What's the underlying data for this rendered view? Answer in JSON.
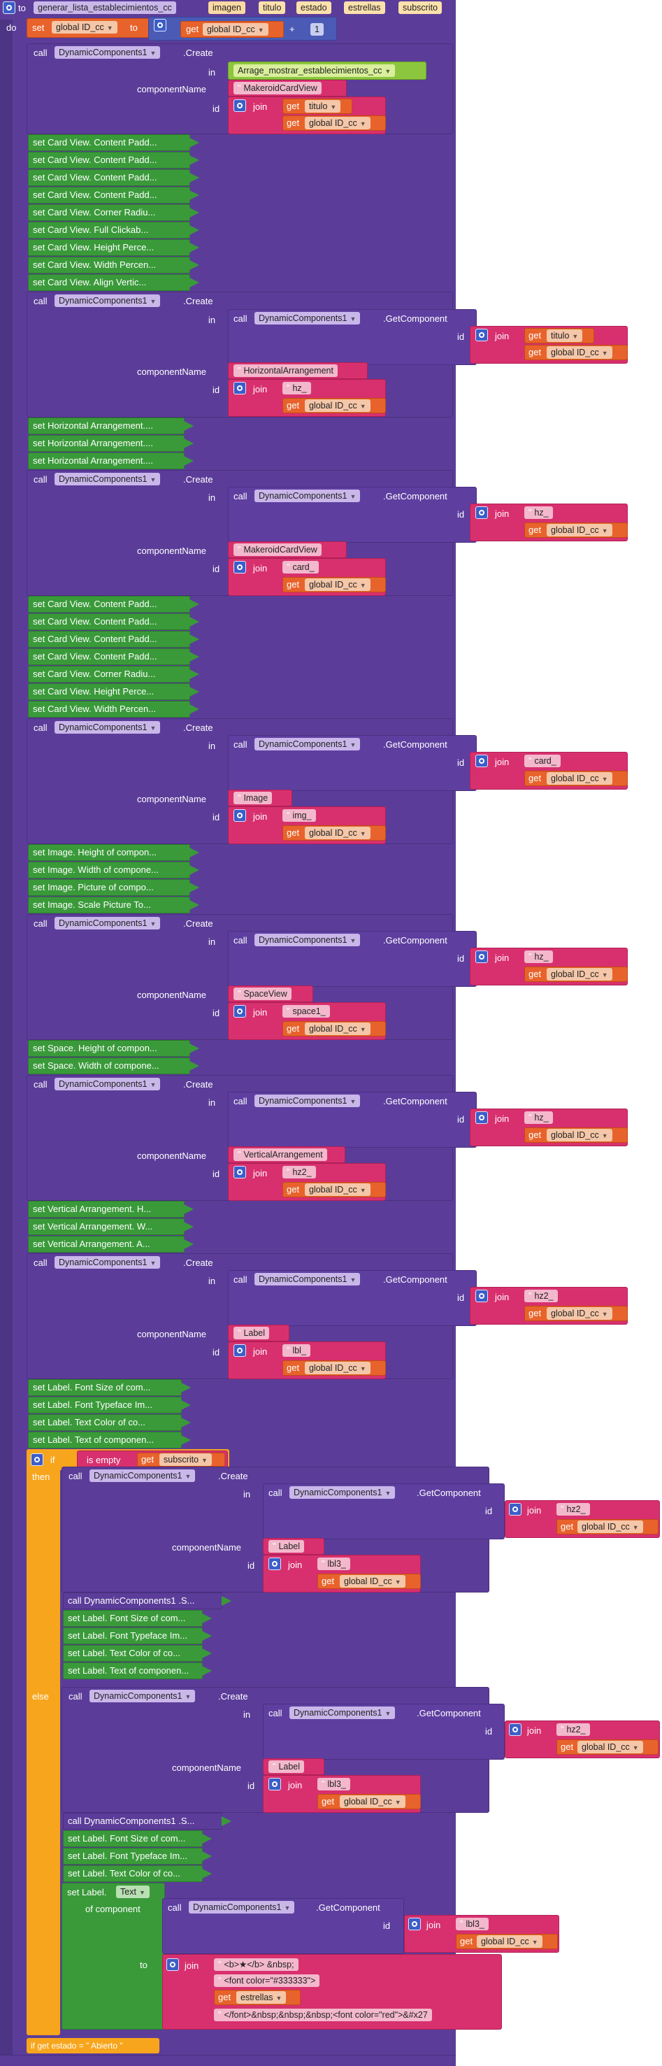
{
  "proc": {
    "to": "to",
    "name": "generar_lista_establecimientos_cc",
    "params": [
      "imagen",
      "titulo",
      "estado",
      "estrellas",
      "subscrito"
    ],
    "do": "do"
  },
  "kw": {
    "set": "set",
    "to": "to",
    "get": "get",
    "call": "call",
    "create": ".Create",
    "getcomp": ".GetComponent",
    "in": "in",
    "componentName": "componentName",
    "id": "id",
    "join": "join",
    "plus": "+",
    "if": "if",
    "then": "then",
    "else": "else",
    "is_empty": "is empty",
    "of_component": "of component",
    "dc": "DynamicComponents1",
    "dc_call_s": "call  DynamicComponents1 .S...",
    "set_label_text": "set Label.",
    "text_prop": "Text"
  },
  "vars": {
    "global_id": "global ID_cc",
    "titulo": "titulo",
    "estrellas": "estrellas",
    "subscrito": "subscrito",
    "one": "1"
  },
  "strings": {
    "arrage": "Arrage_mostrar_establecimientos_cc",
    "makeroid": "MakeroidCardView",
    "horizontal": "HorizontalArrangement",
    "hz": "hz_",
    "card": "card_",
    "image": "Image",
    "img": "img_",
    "space": "SpaceView",
    "space1": "space1_",
    "vertical": "VerticalArrangement",
    "hz2": "hz2_",
    "label": "Label",
    "lbl": "lbl_",
    "lbl3": "lbl3_",
    "s_b": "<b>★</b> &nbsp;",
    "s_font": "<font color=\"#333333\">",
    "s_end": "</font>&nbsp;&nbsp;&nbsp;<font color=\"red\">&#x27",
    "footer_if": "if  get estado =  \" Abierto \""
  },
  "sets": {
    "card1": [
      "set Card View. Content Padd...",
      "set Card View. Content Padd...",
      "set Card View. Content Padd...",
      "set Card View. Content Padd...",
      "set Card View. Corner Radiu...",
      "set Card View. Full Clickab...",
      "set Card View. Height Perce...",
      "set Card View. Width Percen...",
      "set Card View. Align Vertic..."
    ],
    "horiz": [
      "set Horizontal Arrangement....",
      "set Horizontal Arrangement....",
      "set Horizontal Arrangement...."
    ],
    "card2": [
      "set Card View. Content Padd...",
      "set Card View. Content Padd...",
      "set Card View. Content Padd...",
      "set Card View. Content Padd...",
      "set Card View. Corner Radiu...",
      "set Card View. Height Perce...",
      "set Card View. Width Percen..."
    ],
    "image": [
      "set Image. Height of compon...",
      "set Image. Width of compone...",
      "set Image. Picture of compo...",
      "set Image. Scale Picture To..."
    ],
    "space": [
      "set Space. Height of compon...",
      "set Space. Width of compone..."
    ],
    "vert": [
      "set Vertical Arrangement. H...",
      "set Vertical Arrangement. W...",
      "set Vertical Arrangement. A..."
    ],
    "label": [
      "set Label. Font Size of com...",
      "set Label. Font Typeface Im...",
      "set Label. Text Color of co...",
      "set Label. Text of componen..."
    ],
    "then": [
      "set Label. Font Size of com...",
      "set Label. Font Typeface Im...",
      "set Label. Text Color of co...",
      "set Label. Text of componen..."
    ],
    "else": [
      "set Label. Font Size of com...",
      "set Label. Font Typeface Im...",
      "set Label. Text Color of co..."
    ]
  },
  "colors": {
    "procedure": "#5b3d99",
    "variable": "#e8632b",
    "text": "#d8306e",
    "setter": "#3a9a3a",
    "control": "#f7a51c",
    "math": "#4b5bb5",
    "component": "#8cc63f"
  }
}
